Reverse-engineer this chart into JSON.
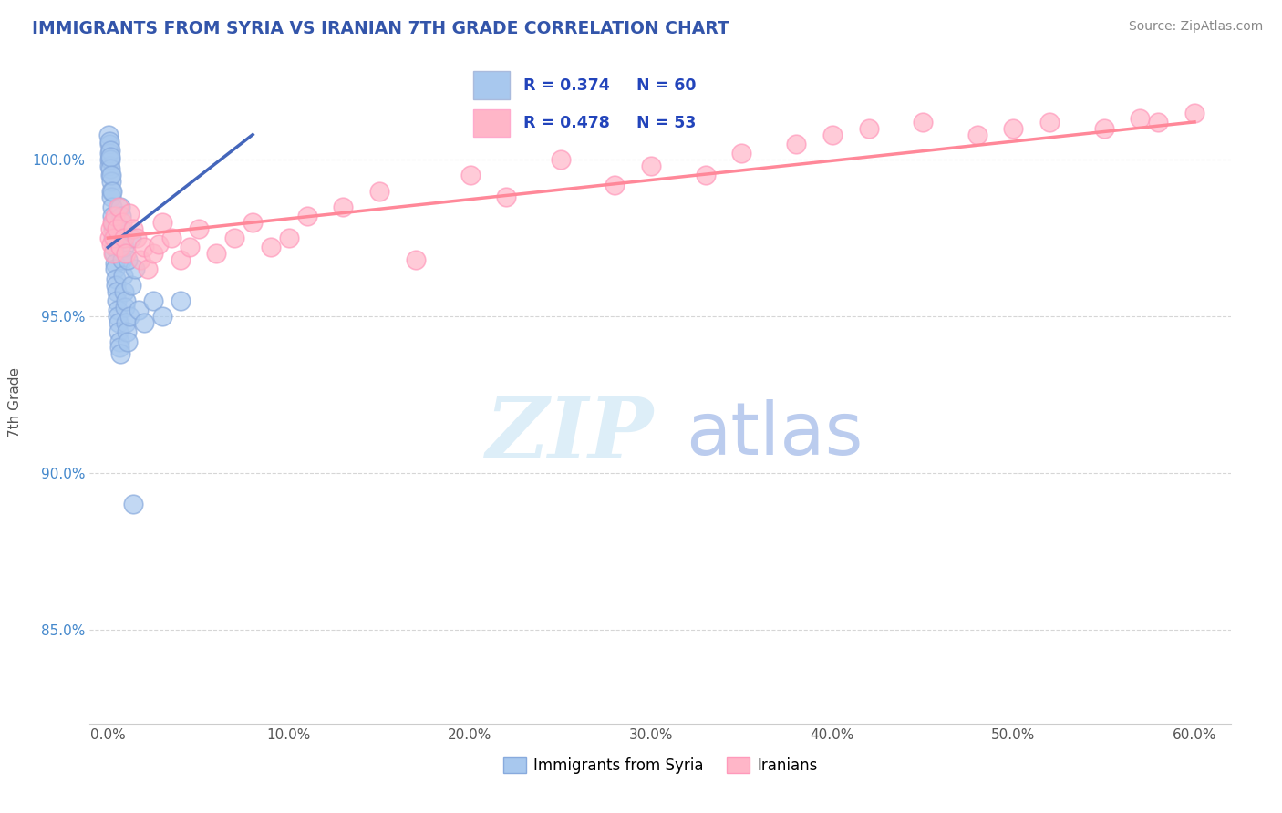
{
  "title": "IMMIGRANTS FROM SYRIA VS IRANIAN 7TH GRADE CORRELATION CHART",
  "source": "Source: ZipAtlas.com",
  "ylabel": "7th Grade",
  "series1_label": "Immigrants from Syria",
  "series2_label": "Iranians",
  "series1_R": 0.374,
  "series1_N": 60,
  "series2_R": 0.478,
  "series2_N": 53,
  "series1_color": "#A8C8EE",
  "series2_color": "#FFB6C8",
  "series1_edge_color": "#88AADD",
  "series2_edge_color": "#FF99BB",
  "series1_line_color": "#4466BB",
  "series2_line_color": "#FF8899",
  "title_color": "#3355AA",
  "ylim_bottom": 82.0,
  "ylim_top": 102.5,
  "xlim_left": -1.0,
  "xlim_right": 62.0,
  "yticks": [
    85.0,
    90.0,
    95.0,
    100.0
  ],
  "xticks": [
    0.0,
    10.0,
    20.0,
    30.0,
    40.0,
    50.0,
    60.0
  ],
  "series1_line_x0": 0.0,
  "series1_line_y0": 97.2,
  "series1_line_x1": 8.0,
  "series1_line_y1": 100.8,
  "series2_line_x0": 0.0,
  "series2_line_y0": 97.5,
  "series2_line_x1": 60.0,
  "series2_line_y1": 101.2,
  "series1_x": [
    0.05,
    0.07,
    0.08,
    0.09,
    0.1,
    0.1,
    0.12,
    0.13,
    0.14,
    0.15,
    0.15,
    0.17,
    0.18,
    0.2,
    0.2,
    0.22,
    0.25,
    0.25,
    0.28,
    0.3,
    0.3,
    0.32,
    0.35,
    0.38,
    0.4,
    0.42,
    0.45,
    0.48,
    0.5,
    0.52,
    0.55,
    0.58,
    0.6,
    0.62,
    0.65,
    0.68,
    0.7,
    0.72,
    0.75,
    0.78,
    0.8,
    0.85,
    0.9,
    0.95,
    1.0,
    1.0,
    1.05,
    1.1,
    1.2,
    1.3,
    1.5,
    1.7,
    2.0,
    2.5,
    3.0,
    4.0,
    0.9,
    1.1,
    1.3,
    1.4
  ],
  "series1_y": [
    100.8,
    100.5,
    100.2,
    100.0,
    99.8,
    100.6,
    100.3,
    99.5,
    100.0,
    99.7,
    100.1,
    99.3,
    99.0,
    98.8,
    99.5,
    98.5,
    98.2,
    99.0,
    97.8,
    97.5,
    98.0,
    97.2,
    97.0,
    96.7,
    96.5,
    96.2,
    96.0,
    95.8,
    95.5,
    95.2,
    95.0,
    94.8,
    94.5,
    94.2,
    94.0,
    93.8,
    98.5,
    98.2,
    97.8,
    97.5,
    96.8,
    96.3,
    95.8,
    95.3,
    94.8,
    95.5,
    94.5,
    94.2,
    95.0,
    96.0,
    96.5,
    95.2,
    94.8,
    95.5,
    95.0,
    95.5,
    97.2,
    96.8,
    97.5,
    89.0
  ],
  "series2_x": [
    0.1,
    0.15,
    0.2,
    0.25,
    0.3,
    0.35,
    0.4,
    0.5,
    0.6,
    0.7,
    0.8,
    0.9,
    1.0,
    1.2,
    1.4,
    1.6,
    1.8,
    2.0,
    2.2,
    2.5,
    2.8,
    3.0,
    3.5,
    4.0,
    4.5,
    5.0,
    6.0,
    7.0,
    8.0,
    9.0,
    10.0,
    11.0,
    13.0,
    15.0,
    17.0,
    20.0,
    22.0,
    25.0,
    28.0,
    30.0,
    33.0,
    35.0,
    38.0,
    40.0,
    42.0,
    45.0,
    48.0,
    50.0,
    52.0,
    55.0,
    57.0,
    58.0,
    60.0
  ],
  "series2_y": [
    97.5,
    97.8,
    97.3,
    98.0,
    97.0,
    97.5,
    98.2,
    97.8,
    98.5,
    97.2,
    98.0,
    97.5,
    97.0,
    98.3,
    97.8,
    97.5,
    96.8,
    97.2,
    96.5,
    97.0,
    97.3,
    98.0,
    97.5,
    96.8,
    97.2,
    97.8,
    97.0,
    97.5,
    98.0,
    97.2,
    97.5,
    98.2,
    98.5,
    99.0,
    96.8,
    99.5,
    98.8,
    100.0,
    99.2,
    99.8,
    99.5,
    100.2,
    100.5,
    100.8,
    101.0,
    101.2,
    100.8,
    101.0,
    101.2,
    101.0,
    101.3,
    101.2,
    101.5
  ]
}
